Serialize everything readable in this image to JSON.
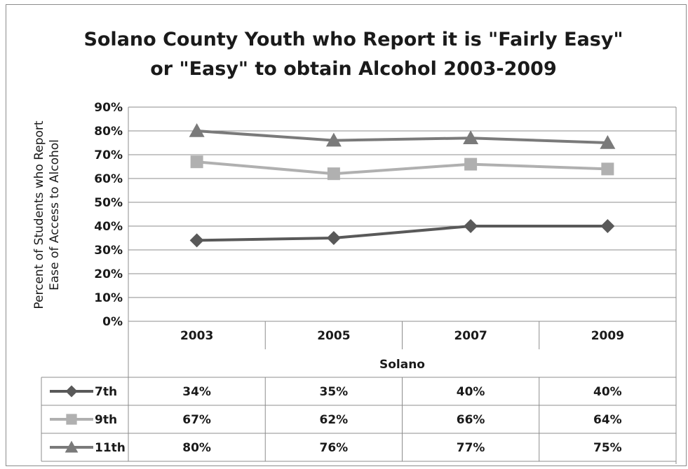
{
  "chart_data": {
    "type": "line",
    "title": [
      "Solano County Youth who Report it is \"Fairly Easy\"",
      "or \"Easy\" to obtain Alcohol 2003-2009"
    ],
    "ylabel": [
      "Percent of Students who Report",
      "Ease of Access to Alcohol"
    ],
    "xlabel": "Solano",
    "categories": [
      "2003",
      "2005",
      "2007",
      "2009"
    ],
    "ylim": [
      0,
      90
    ],
    "yticks": [
      "0%",
      "10%",
      "20%",
      "30%",
      "40%",
      "50%",
      "60%",
      "70%",
      "80%",
      "90%"
    ],
    "grid": true,
    "legend": "data-table",
    "series": [
      {
        "name": "7th",
        "marker": "diamond",
        "color": "#595959",
        "values": [
          34,
          35,
          40,
          40
        ],
        "labels": [
          "34%",
          "35%",
          "40%",
          "40%"
        ]
      },
      {
        "name": "9th",
        "marker": "square",
        "color": "#b0b0b0",
        "values": [
          67,
          62,
          66,
          64
        ],
        "labels": [
          "67%",
          "62%",
          "66%",
          "64%"
        ]
      },
      {
        "name": "11th",
        "marker": "triangle",
        "color": "#7a7a7a",
        "values": [
          80,
          76,
          77,
          75
        ],
        "labels": [
          "80%",
          "76%",
          "77%",
          "75%"
        ]
      }
    ]
  }
}
